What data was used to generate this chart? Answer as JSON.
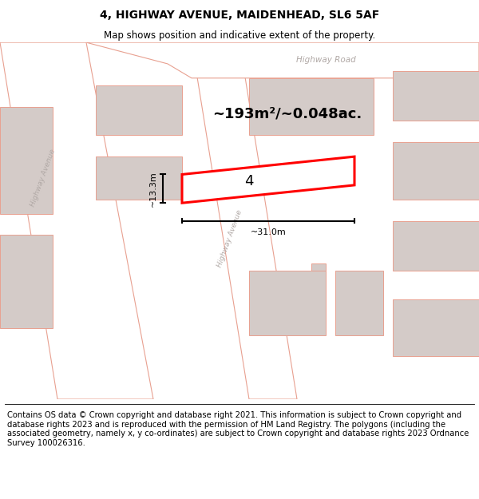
{
  "title_line1": "4, HIGHWAY AVENUE, MAIDENHEAD, SL6 5AF",
  "title_line2": "Map shows position and indicative extent of the property.",
  "footer_text": "Contains OS data © Crown copyright and database right 2021. This information is subject to Crown copyright and database rights 2023 and is reproduced with the permission of HM Land Registry. The polygons (including the associated geometry, namely x, y co-ordinates) are subject to Crown copyright and database rights 2023 Ordnance Survey 100026316.",
  "map_bg": "#f0ebe8",
  "road_fill": "#ffffff",
  "road_stroke": "#e8a090",
  "building_fill": "#d4cbc8",
  "building_stroke": "#e8a090",
  "highlight_stroke": "#ff0000",
  "highlight_fill": "#ffffff",
  "area_text": "~193m²/~0.048ac.",
  "label_text": "4",
  "dim_width": "~31.0m",
  "dim_height": "~13.3m",
  "road_label_color": "#b0a8a5",
  "title_fontsize": 10,
  "subtitle_fontsize": 8.5,
  "footer_fontsize": 7.2,
  "area_fontsize": 13,
  "label_fontsize": 13,
  "dim_fontsize": 8
}
